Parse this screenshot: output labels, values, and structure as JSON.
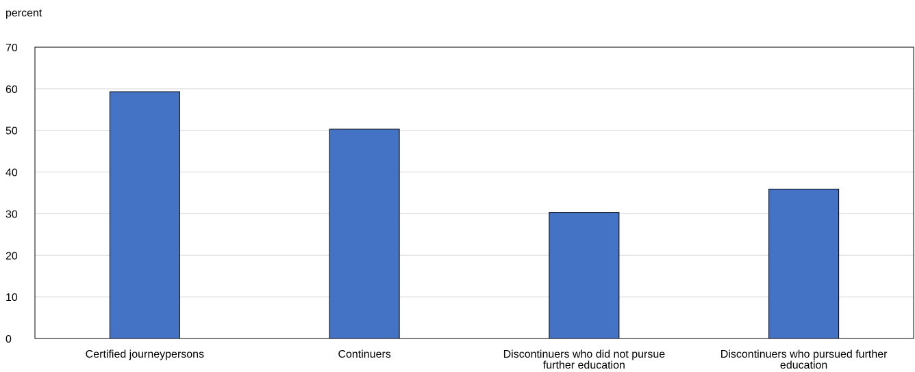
{
  "chart_data": {
    "type": "bar",
    "ylabel": "percent",
    "categories": [
      [
        "Certified journeypersons"
      ],
      [
        "Continuers"
      ],
      [
        "Discontinuers who did not pursue",
        "further education"
      ],
      [
        "Discontinuers who pursued further",
        "education"
      ]
    ],
    "values": [
      59.3,
      50.3,
      30.3,
      35.9
    ],
    "ylim": [
      0,
      70
    ],
    "yticks": [
      "0",
      "10",
      "20",
      "30",
      "40",
      "50",
      "60",
      "70"
    ],
    "grid": true,
    "legend": "none",
    "bar_color": "#4472c4",
    "bar_stroke": "#000000",
    "grid_color": "#d9d9d9"
  }
}
